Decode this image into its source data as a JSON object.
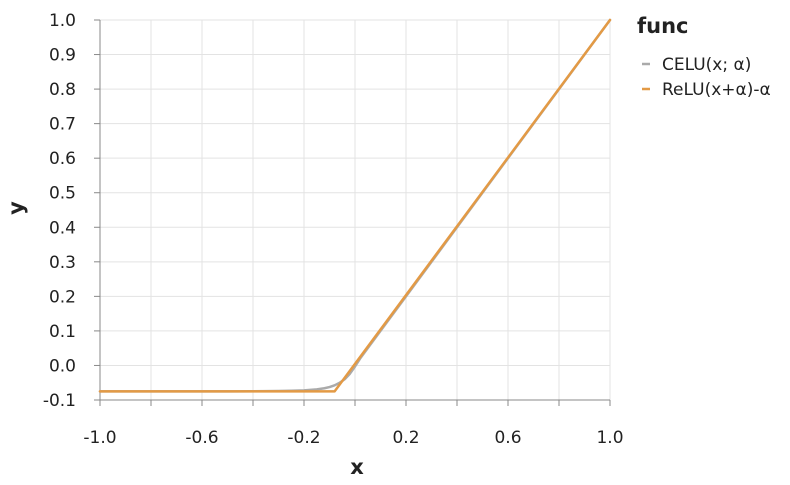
{
  "chart_data": {
    "type": "line",
    "xlabel": "x",
    "ylabel": "y",
    "xlim": [
      -1.0,
      1.0
    ],
    "ylim": [
      -0.1,
      1.0
    ],
    "xticks": [
      -1.0,
      -0.8,
      -0.6,
      -0.4,
      -0.2,
      0.0,
      0.2,
      0.4,
      0.6,
      0.8,
      1.0
    ],
    "xtick_labels": [
      "-1.0",
      "-0.6",
      "-0.2",
      "0.2",
      "0.6",
      "1.0"
    ],
    "xtick_label_values": [
      -1.0,
      -0.6,
      -0.2,
      0.2,
      0.6,
      1.0
    ],
    "yticks": [
      -0.1,
      0.0,
      0.1,
      0.2,
      0.3,
      0.4,
      0.5,
      0.6,
      0.7,
      0.8,
      0.9,
      1.0
    ],
    "ytick_labels": [
      "-0.1",
      "0.0",
      "0.1",
      "0.2",
      "0.3",
      "0.4",
      "0.5",
      "0.6",
      "0.7",
      "0.8",
      "0.9",
      "1.0"
    ],
    "grid": true,
    "legend": {
      "title": "func",
      "position": "right",
      "entries": [
        "CELU(x; α)",
        "ReLU(x+α)-α"
      ]
    },
    "series": [
      {
        "name": "CELU(x; α)",
        "color": "#aaaaaa",
        "x": [
          -1.0,
          -0.5,
          -0.3,
          -0.25,
          -0.2,
          -0.15,
          -0.12,
          -0.1,
          -0.08,
          -0.06,
          -0.04,
          -0.02,
          0.0,
          0.02,
          0.05,
          0.1,
          0.2,
          0.4,
          0.6,
          0.8,
          1.0
        ],
        "y": [
          -0.075,
          -0.075,
          -0.0741,
          -0.0734,
          -0.0722,
          -0.0693,
          -0.066,
          -0.0626,
          -0.0575,
          -0.0501,
          -0.0396,
          -0.0239,
          -0.003,
          0.02,
          0.05,
          0.1,
          0.2,
          0.4,
          0.6,
          0.8,
          1.0
        ]
      },
      {
        "name": "ReLU(x+α)-α",
        "color": "#e39a45",
        "x": [
          -1.0,
          -0.08,
          1.0
        ],
        "y": [
          -0.075,
          -0.075,
          1.0
        ]
      }
    ]
  }
}
